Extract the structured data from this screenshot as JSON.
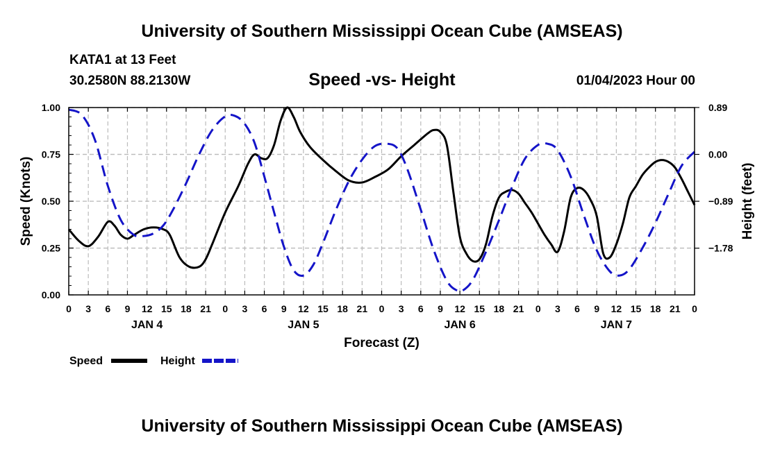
{
  "header": {
    "title": "University of Southern Mississippi Ocean Cube (AMSEAS)",
    "station": "KATA1 at 13 Feet",
    "coords": "30.2580N  88.2130W",
    "chart_title": "Speed -vs- Height",
    "datetime": "01/04/2023 Hour 00"
  },
  "footer": {
    "title": "University of Southern Mississippi Ocean Cube (AMSEAS)"
  },
  "colors": {
    "speed": "#000000",
    "height": "#1414c8",
    "grid": "#bbbbbb"
  },
  "chart_data": {
    "type": "line",
    "title": "Speed -vs- Height",
    "xlabel": "Forecast (Z)",
    "ylabel": "Speed (Knots)",
    "y2label": "Height (feet)",
    "xlim": [
      0,
      96
    ],
    "ylim": [
      0,
      1
    ],
    "y2lim": [
      -2.667,
      0.889
    ],
    "x_tick_labels": [
      "0",
      "3",
      "6",
      "9",
      "12",
      "15",
      "18",
      "21",
      "0",
      "3",
      "6",
      "9",
      "12",
      "15",
      "18",
      "21",
      "0",
      "3",
      "6",
      "9",
      "12",
      "15",
      "18",
      "21",
      "0",
      "3",
      "6",
      "9",
      "12",
      "15",
      "18",
      "21",
      "0"
    ],
    "day_labels": [
      {
        "x": 12,
        "label": "JAN 4"
      },
      {
        "x": 36,
        "label": "JAN 5"
      },
      {
        "x": 60,
        "label": "JAN 6"
      },
      {
        "x": 84,
        "label": "JAN 7"
      }
    ],
    "y_ticks": [
      0,
      0.25,
      0.5,
      0.75,
      1.0
    ],
    "y_tick_labels": [
      "0.00",
      "0.25",
      "0.50",
      "0.75",
      "1.00"
    ],
    "y2_ticks": [
      0.89,
      0.0,
      -0.89,
      -1.78
    ],
    "y2_tick_labels": [
      "0.89",
      "0.00",
      "−0.89",
      "−1.78"
    ],
    "grid": true,
    "legend": {
      "position": "bottom-left",
      "entries": [
        "Speed",
        "Height"
      ]
    },
    "series": [
      {
        "name": "Speed",
        "axis": "left",
        "style": "solid",
        "points": [
          [
            0,
            0.35
          ],
          [
            1.5,
            0.29
          ],
          [
            3,
            0.26
          ],
          [
            4.5,
            0.31
          ],
          [
            6,
            0.39
          ],
          [
            7,
            0.37
          ],
          [
            8,
            0.32
          ],
          [
            9,
            0.3
          ],
          [
            10,
            0.32
          ],
          [
            11.5,
            0.35
          ],
          [
            13,
            0.36
          ],
          [
            14.5,
            0.35
          ],
          [
            15.5,
            0.32
          ],
          [
            17,
            0.2
          ],
          [
            18.5,
            0.15
          ],
          [
            20,
            0.15
          ],
          [
            21,
            0.19
          ],
          [
            22,
            0.27
          ],
          [
            24,
            0.44
          ],
          [
            26,
            0.58
          ],
          [
            27.5,
            0.7
          ],
          [
            28.5,
            0.75
          ],
          [
            29.5,
            0.73
          ],
          [
            30.5,
            0.73
          ],
          [
            31.5,
            0.8
          ],
          [
            32.5,
            0.93
          ],
          [
            33.5,
            1.0
          ],
          [
            34.5,
            0.95
          ],
          [
            35.5,
            0.87
          ],
          [
            37,
            0.79
          ],
          [
            39,
            0.72
          ],
          [
            41,
            0.66
          ],
          [
            43,
            0.61
          ],
          [
            45,
            0.6
          ],
          [
            47,
            0.63
          ],
          [
            49,
            0.67
          ],
          [
            51,
            0.74
          ],
          [
            53,
            0.8
          ],
          [
            55,
            0.86
          ],
          [
            56,
            0.88
          ],
          [
            57,
            0.87
          ],
          [
            58,
            0.8
          ],
          [
            59,
            0.55
          ],
          [
            60,
            0.31
          ],
          [
            61,
            0.22
          ],
          [
            62,
            0.18
          ],
          [
            63,
            0.19
          ],
          [
            64,
            0.27
          ],
          [
            65,
            0.42
          ],
          [
            66,
            0.52
          ],
          [
            67,
            0.55
          ],
          [
            68,
            0.56
          ],
          [
            69,
            0.54
          ],
          [
            70,
            0.49
          ],
          [
            71,
            0.44
          ],
          [
            72,
            0.38
          ],
          [
            73,
            0.32
          ],
          [
            74,
            0.27
          ],
          [
            75,
            0.23
          ],
          [
            76,
            0.34
          ],
          [
            77,
            0.52
          ],
          [
            78,
            0.57
          ],
          [
            79,
            0.56
          ],
          [
            80,
            0.51
          ],
          [
            81,
            0.42
          ],
          [
            82,
            0.22
          ],
          [
            83,
            0.2
          ],
          [
            84,
            0.27
          ],
          [
            85,
            0.38
          ],
          [
            86,
            0.52
          ],
          [
            87,
            0.58
          ],
          [
            88,
            0.64
          ],
          [
            89,
            0.68
          ],
          [
            90,
            0.71
          ],
          [
            91,
            0.72
          ],
          [
            92,
            0.71
          ],
          [
            93,
            0.68
          ],
          [
            94,
            0.62
          ],
          [
            95,
            0.55
          ],
          [
            96,
            0.48
          ]
        ]
      },
      {
        "name": "Height",
        "axis": "right",
        "style": "dashed",
        "points": [
          [
            0,
            0.85
          ],
          [
            2,
            0.75
          ],
          [
            4,
            0.28
          ],
          [
            6,
            -0.6
          ],
          [
            8,
            -1.25
          ],
          [
            10,
            -1.53
          ],
          [
            11.5,
            -1.55
          ],
          [
            13,
            -1.5
          ],
          [
            14.5,
            -1.35
          ],
          [
            16,
            -1.05
          ],
          [
            18,
            -0.55
          ],
          [
            20,
            0.0
          ],
          [
            22,
            0.46
          ],
          [
            24,
            0.72
          ],
          [
            25.5,
            0.73
          ],
          [
            27,
            0.58
          ],
          [
            28.5,
            0.22
          ],
          [
            30,
            -0.42
          ],
          [
            31.5,
            -1.1
          ],
          [
            33,
            -1.75
          ],
          [
            34.5,
            -2.2
          ],
          [
            36,
            -2.3
          ],
          [
            37.5,
            -2.1
          ],
          [
            39,
            -1.68
          ],
          [
            41,
            -1.05
          ],
          [
            43,
            -0.5
          ],
          [
            45,
            -0.1
          ],
          [
            47,
            0.16
          ],
          [
            49,
            0.2
          ],
          [
            50.5,
            0.1
          ],
          [
            52,
            -0.3
          ],
          [
            54,
            -1.05
          ],
          [
            56,
            -1.82
          ],
          [
            58,
            -2.4
          ],
          [
            59.5,
            -2.58
          ],
          [
            60.5,
            -2.58
          ],
          [
            62,
            -2.38
          ],
          [
            64,
            -1.85
          ],
          [
            66,
            -1.25
          ],
          [
            68,
            -0.62
          ],
          [
            70,
            -0.08
          ],
          [
            72,
            0.18
          ],
          [
            73.5,
            0.2
          ],
          [
            75,
            0.08
          ],
          [
            77,
            -0.42
          ],
          [
            79,
            -1.15
          ],
          [
            81,
            -1.82
          ],
          [
            83,
            -2.22
          ],
          [
            84.5,
            -2.3
          ],
          [
            86,
            -2.18
          ],
          [
            88,
            -1.78
          ],
          [
            90,
            -1.3
          ],
          [
            92,
            -0.75
          ],
          [
            94,
            -0.22
          ],
          [
            96,
            0.05
          ]
        ]
      }
    ]
  }
}
